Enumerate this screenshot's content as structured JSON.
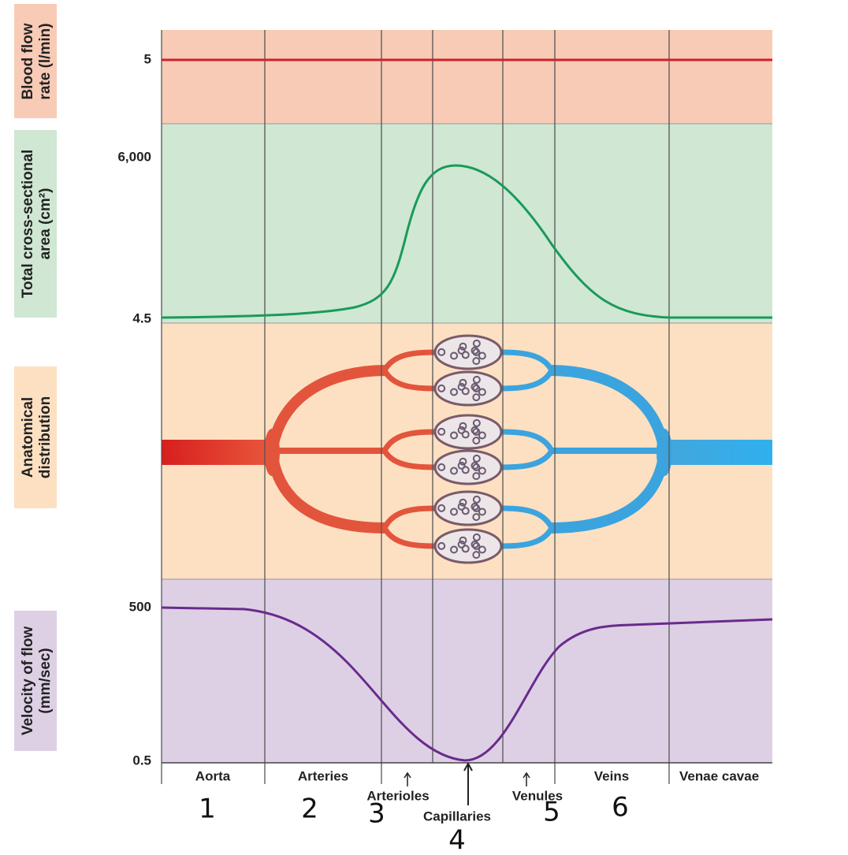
{
  "panels": [
    {
      "lines": [
        "Blood flow",
        "rate (l/min)"
      ]
    },
    {
      "lines": [
        "Total cross-sectional",
        "area (cm²)"
      ]
    },
    {
      "lines": [
        "Anatomical",
        "distribution"
      ]
    },
    {
      "lines": [
        "Velocity of flow",
        "(mm/sec)"
      ]
    }
  ],
  "axis_labels": [
    "5",
    "6,000",
    "4.5",
    "500",
    "0.5"
  ],
  "segments": [
    "Aorta",
    "Arteries",
    "Arterioles",
    "Capillaries",
    "Venules",
    "Veins",
    "Venae cavae"
  ],
  "markers": [
    "1",
    "2",
    "3",
    "4",
    "5",
    "6"
  ]
}
